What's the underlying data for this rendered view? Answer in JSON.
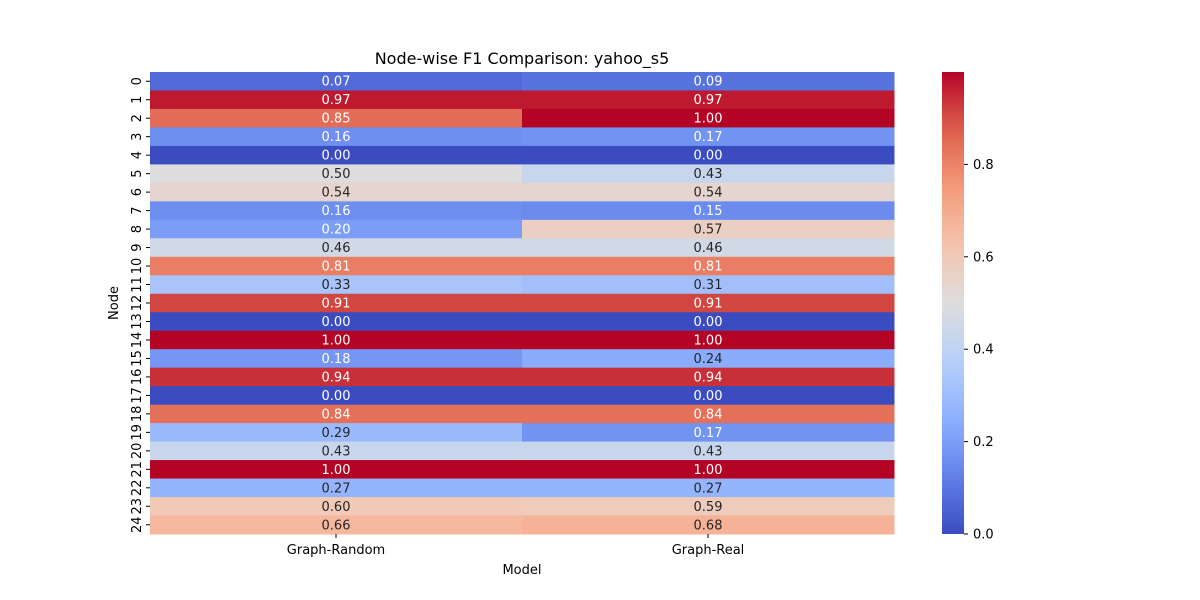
{
  "chart_data": {
    "type": "heatmap",
    "title": "Node-wise F1 Comparison: yahoo_s5",
    "xlabel": "Model",
    "ylabel": "Node",
    "columns": [
      "Graph-Random",
      "Graph-Real"
    ],
    "rows": [
      "0",
      "1",
      "2",
      "3",
      "4",
      "5",
      "6",
      "7",
      "8",
      "9",
      "10",
      "11",
      "12",
      "13",
      "14",
      "15",
      "16",
      "17",
      "18",
      "19",
      "20",
      "21",
      "22",
      "23",
      "24"
    ],
    "values": [
      [
        0.07,
        0.09
      ],
      [
        0.97,
        0.97
      ],
      [
        0.85,
        1.0
      ],
      [
        0.16,
        0.17
      ],
      [
        0.0,
        0.0
      ],
      [
        0.5,
        0.43
      ],
      [
        0.54,
        0.54
      ],
      [
        0.16,
        0.15
      ],
      [
        0.2,
        0.57
      ],
      [
        0.46,
        0.46
      ],
      [
        0.81,
        0.81
      ],
      [
        0.33,
        0.31
      ],
      [
        0.91,
        0.91
      ],
      [
        0.0,
        0.0
      ],
      [
        1.0,
        1.0
      ],
      [
        0.18,
        0.24
      ],
      [
        0.94,
        0.94
      ],
      [
        0.0,
        0.0
      ],
      [
        0.84,
        0.84
      ],
      [
        0.29,
        0.17
      ],
      [
        0.43,
        0.43
      ],
      [
        1.0,
        1.0
      ],
      [
        0.27,
        0.27
      ],
      [
        0.6,
        0.59
      ],
      [
        0.66,
        0.68
      ]
    ],
    "colormap": "coolwarm",
    "vmin": 0.0,
    "vmax": 1.0,
    "colorbar_ticks": [
      "0.0",
      "0.2",
      "0.4",
      "0.6",
      "0.8"
    ],
    "colorbar_tick_values": [
      0.0,
      0.2,
      0.4,
      0.6,
      0.8
    ],
    "annotations": "values shown with 2 decimals"
  }
}
